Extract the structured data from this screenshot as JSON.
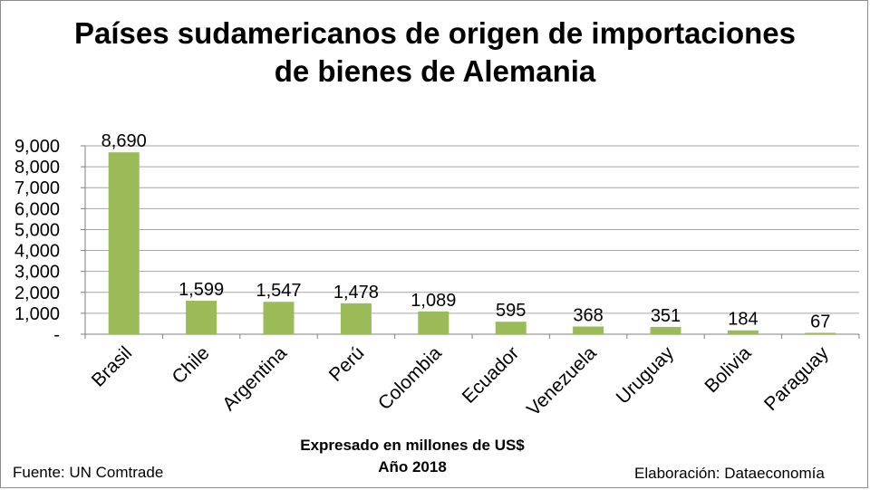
{
  "title": {
    "line1": "Países sudamericanos de origen de importaciones",
    "line2": "de bienes de Alemania"
  },
  "footer": {
    "unit_note": "Expresado en millones de US$",
    "year_note": "Año 2018",
    "source": "Fuente: UN Comtrade",
    "credit": "Elaboración: Dataeconomía"
  },
  "chart_data": {
    "type": "bar",
    "categories": [
      "Brasil",
      "Chile",
      "Argentina",
      "Perú",
      "Colombia",
      "Ecuador",
      "Venezuela",
      "Uruguay",
      "Bolivia",
      "Paraguay"
    ],
    "values": [
      8690,
      1599,
      1547,
      1478,
      1089,
      595,
      368,
      351,
      184,
      67
    ],
    "value_labels": [
      "8,690",
      "1,599",
      "1,547",
      "1,478",
      "1,089",
      "595",
      "368",
      "351",
      "184",
      "67"
    ],
    "ylim": [
      0,
      9000
    ],
    "yticks": [
      0,
      1000,
      2000,
      3000,
      4000,
      5000,
      6000,
      7000,
      8000,
      9000
    ],
    "ytick_labels": [
      "-",
      "1,000",
      "2,000",
      "3,000",
      "4,000",
      "5,000",
      "6,000",
      "7,000",
      "8,000",
      "9,000"
    ],
    "grid": true,
    "legend": "none",
    "bar_color": "#9bbb59",
    "grid_color": "#a6a6a6"
  }
}
